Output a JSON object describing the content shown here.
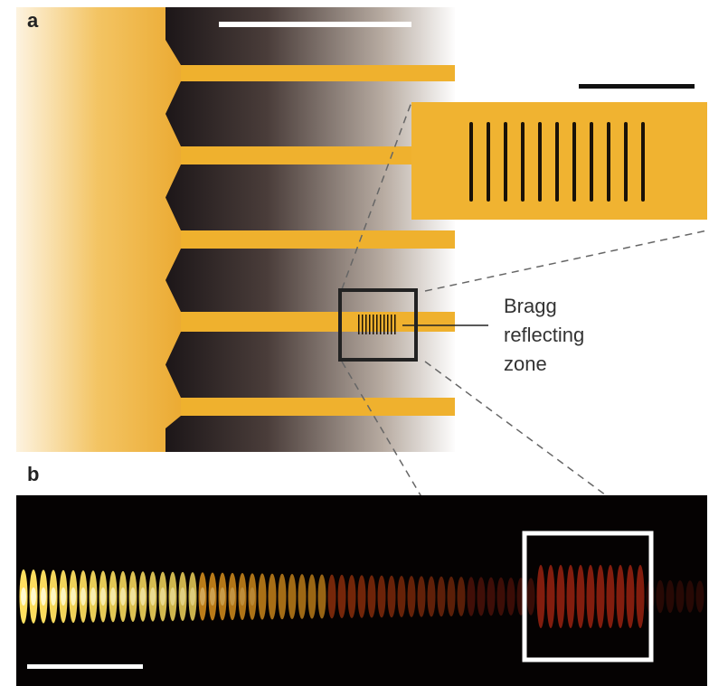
{
  "panels": [
    {
      "label": "a"
    },
    {
      "label": "b"
    }
  ],
  "annotation": {
    "lines": [
      "Bragg",
      "reflecting",
      "zone"
    ]
  }
}
